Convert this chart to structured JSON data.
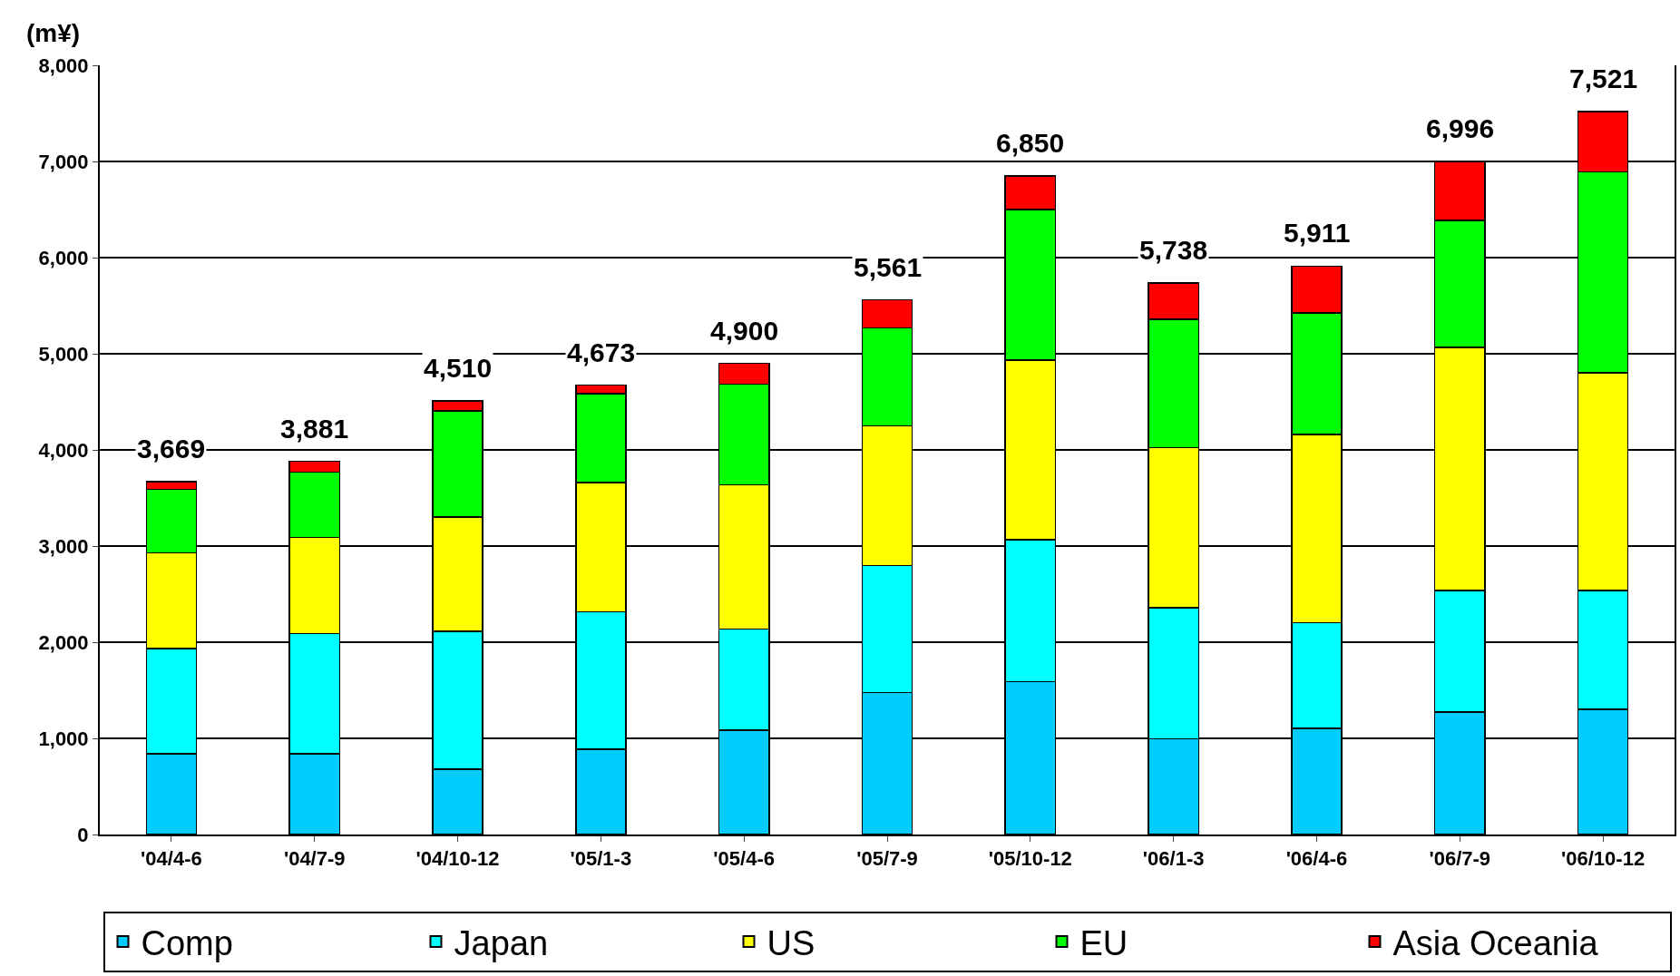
{
  "chart_data": {
    "type": "bar",
    "stacked": true,
    "ylabel": "(m¥)",
    "categories": [
      "'04/4-6",
      "'04/7-9",
      "'04/10-12",
      "'05/1-3",
      "'05/4-6",
      "'05/7-9",
      "'05/10-12",
      "'06/1-3",
      "'06/4-6",
      "'06/7-9",
      "'06/10-12"
    ],
    "series": [
      {
        "name": "Comp",
        "color": "#00ccff",
        "values": [
          840,
          840,
          680,
          885,
          1085,
          1475,
          1590,
          995,
          1105,
          1275,
          1300
        ]
      },
      {
        "name": "Japan",
        "color": "#00ffff",
        "values": [
          1095,
          1250,
          1435,
          1430,
          1050,
          1320,
          1475,
          1365,
          1100,
          1265,
          1240
        ]
      },
      {
        "name": "US",
        "color": "#ffff00",
        "values": [
          995,
          1000,
          1185,
          1345,
          1500,
          1455,
          1870,
          1665,
          1955,
          2525,
          2260
        ]
      },
      {
        "name": "EU",
        "color": "#00ff00",
        "values": [
          660,
          680,
          1105,
          925,
          1050,
          1020,
          1565,
          1335,
          1265,
          1320,
          2090
        ]
      },
      {
        "name": "Asia Oceania",
        "color": "#ff0000",
        "values": [
          79,
          111,
          105,
          88,
          215,
          291,
          350,
          378,
          486,
          611,
          631
        ]
      }
    ],
    "totals": [
      "3,669",
      "3,881",
      "4,510",
      "4,673",
      "4,900",
      "5,561",
      "6,850",
      "5,738",
      "5,911",
      "6,996",
      "7,521"
    ],
    "ylim": [
      0,
      8000
    ],
    "yticks": [
      {
        "value": 0,
        "label": "0"
      },
      {
        "value": 1000,
        "label": "1,000"
      },
      {
        "value": 2000,
        "label": "2,000"
      },
      {
        "value": 3000,
        "label": "3,000"
      },
      {
        "value": 4000,
        "label": "4,000"
      },
      {
        "value": 5000,
        "label": "5,000"
      },
      {
        "value": 6000,
        "label": "6,000"
      },
      {
        "value": 7000,
        "label": "7,000"
      },
      {
        "value": 8000,
        "label": "8,000"
      }
    ],
    "grid": "y",
    "legend": "bottom"
  }
}
